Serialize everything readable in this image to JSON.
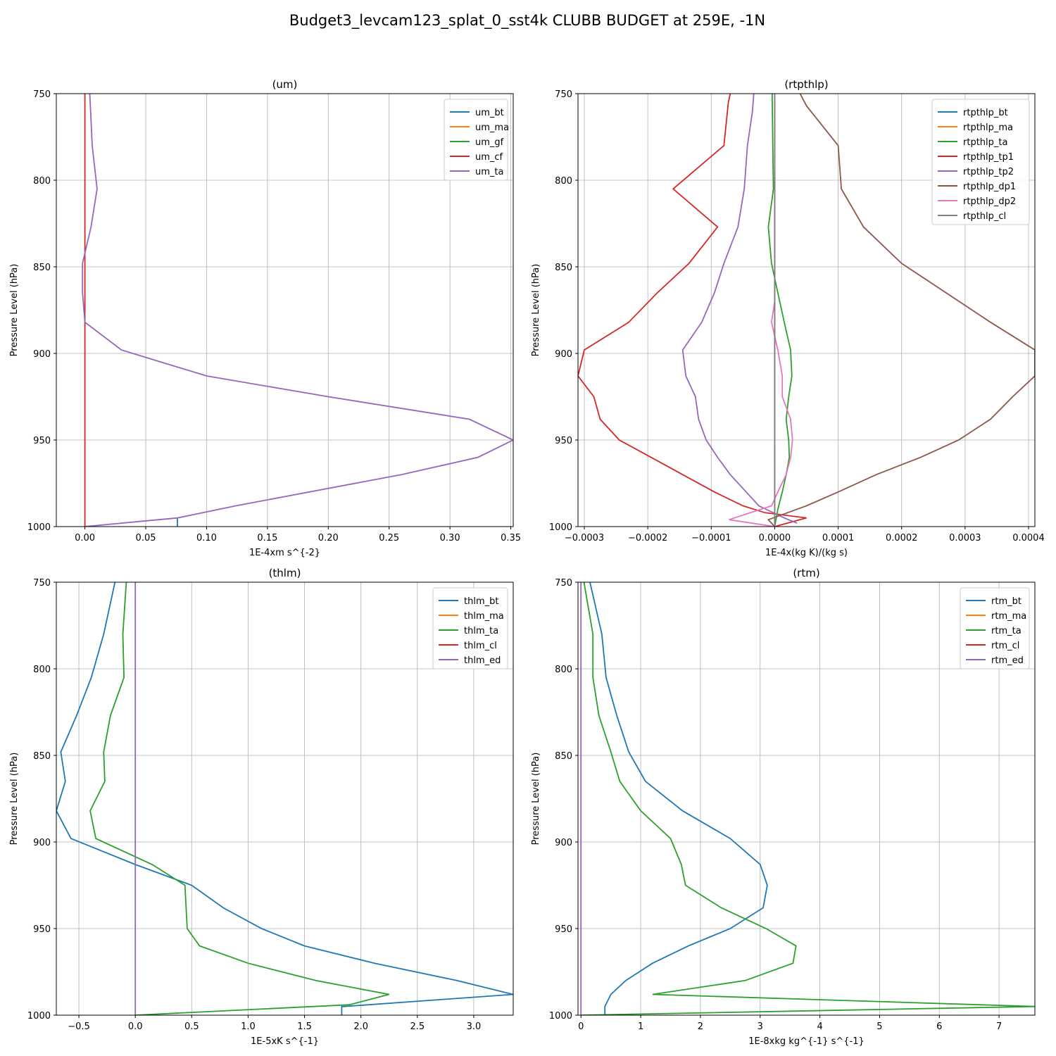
{
  "figure": {
    "suptitle": "Budget3_levcam123_splat_0_sst4k CLUBB BUDGET at 259E, -1N"
  },
  "chart_data": [
    {
      "type": "line",
      "title": "(um)",
      "xlabel": "1E-4xm s^{-2}",
      "ylabel": "Pressure Level (hPa)",
      "xlim": [
        -0.0235,
        0.352
      ],
      "ylim": [
        1000,
        750
      ],
      "y_inverted": true,
      "xticks": [
        0.0,
        0.05,
        0.1,
        0.15,
        0.2,
        0.25,
        0.3,
        0.35
      ],
      "xtick_labels": [
        "0.00",
        "0.05",
        "0.10",
        "0.15",
        "0.20",
        "0.25",
        "0.30",
        "0.35"
      ],
      "yticks": [
        750,
        800,
        850,
        900,
        950,
        1000
      ],
      "ytick_labels": [
        "750",
        "800",
        "850",
        "900",
        "950",
        "1000"
      ],
      "grid": true,
      "legend_position": "upper right",
      "series": [
        {
          "name": "um_bt",
          "color": "#1f77b4",
          "points": [
            [
              0.076,
              1000
            ],
            [
              0.076,
              995
            ]
          ]
        },
        {
          "name": "um_ma",
          "color": "#ff7f0e",
          "points": []
        },
        {
          "name": "um_gf",
          "color": "#2ca02c",
          "points": []
        },
        {
          "name": "um_cf",
          "color": "#d62728",
          "points": [
            [
              0.0,
              750
            ],
            [
              0.0,
              1000
            ]
          ]
        },
        {
          "name": "um_ta",
          "color": "#9467bd",
          "points": [
            [
              0.004,
              750
            ],
            [
              0.006,
              780
            ],
            [
              0.01,
              805
            ],
            [
              0.005,
              827
            ],
            [
              -0.002,
              848
            ],
            [
              -0.002,
              865
            ],
            [
              0.0,
              882
            ],
            [
              0.03,
              898
            ],
            [
              0.1,
              913
            ],
            [
              0.2,
              925
            ],
            [
              0.316,
              938
            ],
            [
              0.352,
              950
            ],
            [
              0.323,
              960
            ],
            [
              0.26,
              970
            ],
            [
              0.124,
              988
            ],
            [
              0.076,
              995
            ],
            [
              0.0,
              1000
            ]
          ]
        }
      ]
    },
    {
      "type": "line",
      "title": "(rtpthlp)",
      "xlabel": "1E-4x(kg K)/(kg s)",
      "ylabel": "Pressure Level (hPa)",
      "xlim": [
        -0.00031,
        0.00041
      ],
      "ylim": [
        1000,
        750
      ],
      "y_inverted": true,
      "xticks": [
        -0.0003,
        -0.0002,
        -0.0001,
        0.0,
        0.0001,
        0.0002,
        0.0003,
        0.0004
      ],
      "xtick_labels": [
        "−0.0003",
        "−0.0002",
        "−0.0001",
        "0.0000",
        "0.0001",
        "0.0002",
        "0.0003",
        "0.0004"
      ],
      "yticks": [
        750,
        800,
        850,
        900,
        950,
        1000
      ],
      "ytick_labels": [
        "750",
        "800",
        "850",
        "900",
        "950",
        "1000"
      ],
      "grid": true,
      "legend_position": "upper right",
      "series": [
        {
          "name": "rtpthlp_bt",
          "color": "#1f77b4",
          "points": []
        },
        {
          "name": "rtpthlp_ma",
          "color": "#ff7f0e",
          "points": [
            [
              0.0,
              750
            ],
            [
              0.0,
              1000
            ]
          ]
        },
        {
          "name": "rtpthlp_ta",
          "color": "#2ca02c",
          "points": [
            [
              -4e-06,
              750
            ],
            [
              -3e-06,
              780
            ],
            [
              -2e-06,
              805
            ],
            [
              -1e-05,
              827
            ],
            [
              -5e-06,
              848
            ],
            [
              5e-06,
              865
            ],
            [
              1.5e-05,
              882
            ],
            [
              2.5e-05,
              898
            ],
            [
              2.7e-05,
              913
            ],
            [
              2.2e-05,
              925
            ],
            [
              1.8e-05,
              938
            ],
            [
              2.2e-05,
              950
            ],
            [
              2.3e-05,
              960
            ],
            [
              1.8e-05,
              970
            ],
            [
              1.2e-05,
              980
            ],
            [
              5e-06,
              990
            ],
            [
              0.0,
              1000
            ]
          ]
        },
        {
          "name": "rtpthlp_tp1",
          "color": "#d62728",
          "points": [
            [
              -7e-05,
              750
            ],
            [
              -7.3e-05,
              755
            ],
            [
              -8e-05,
              780
            ],
            [
              -0.00016,
              805
            ],
            [
              -9e-05,
              827
            ],
            [
              -0.000135,
              848
            ],
            [
              -0.000185,
              865
            ],
            [
              -0.00023,
              882
            ],
            [
              -0.0003,
              898
            ],
            [
              -0.00031,
              913
            ],
            [
              -0.000285,
              925
            ],
            [
              -0.000275,
              938
            ],
            [
              -0.000245,
              950
            ],
            [
              -0.000195,
              960
            ],
            [
              -0.000145,
              970
            ],
            [
              -9.5e-05,
              980
            ],
            [
              -5e-05,
              988
            ],
            [
              -1.5e-05,
              992
            ],
            [
              5e-05,
              995
            ],
            [
              0.0,
              1000
            ]
          ]
        },
        {
          "name": "rtpthlp_tp2",
          "color": "#9467bd",
          "points": [
            [
              -3.3e-05,
              750
            ],
            [
              -3.5e-05,
              760
            ],
            [
              -4.3e-05,
              780
            ],
            [
              -4.8e-05,
              805
            ],
            [
              -5.8e-05,
              827
            ],
            [
              -8e-05,
              848
            ],
            [
              -9.5e-05,
              865
            ],
            [
              -0.000115,
              882
            ],
            [
              -0.000145,
              898
            ],
            [
              -0.00014,
              913
            ],
            [
              -0.000125,
              925
            ],
            [
              -0.00012,
              938
            ],
            [
              -0.000108,
              950
            ],
            [
              -9e-05,
              960
            ],
            [
              -7e-05,
              970
            ],
            [
              -4.5e-05,
              980
            ],
            [
              -2.5e-05,
              988
            ],
            [
              1.5e-05,
              995
            ],
            [
              3.5e-05,
              998
            ]
          ]
        },
        {
          "name": "rtpthlp_dp1",
          "color": "#8c564b",
          "points": [
            [
              4e-05,
              750
            ],
            [
              5e-05,
              757
            ],
            [
              0.0001,
              780
            ],
            [
              0.000105,
              805
            ],
            [
              0.00014,
              827
            ],
            [
              0.0002,
              848
            ],
            [
              0.00027,
              865
            ],
            [
              0.00034,
              882
            ],
            [
              0.00041,
              898
            ],
            [
              0.00041,
              913
            ],
            [
              0.000375,
              925
            ],
            [
              0.00034,
              938
            ],
            [
              0.00029,
              950
            ],
            [
              0.00023,
              960
            ],
            [
              0.00016,
              970
            ],
            [
              0.0001,
              980
            ],
            [
              5e-05,
              988
            ],
            [
              -1e-05,
              996
            ],
            [
              0.0,
              1000
            ]
          ]
        },
        {
          "name": "rtpthlp_dp2",
          "color": "#e377c2",
          "points": [
            [
              0.0,
              750
            ],
            [
              0.0,
              850
            ],
            [
              0.0,
              870
            ],
            [
              -5e-06,
              882
            ],
            [
              5e-06,
              898
            ],
            [
              1.2e-05,
              913
            ],
            [
              1.2e-05,
              925
            ],
            [
              2.5e-05,
              938
            ],
            [
              2.8e-05,
              950
            ],
            [
              2.5e-05,
              960
            ],
            [
              1.8e-05,
              970
            ],
            [
              5e-06,
              980
            ],
            [
              -5e-06,
              988
            ],
            [
              -7.2e-05,
              996
            ],
            [
              0.0,
              1000
            ]
          ]
        },
        {
          "name": "rtpthlp_cl",
          "color": "#7f7f7f",
          "points": [
            [
              0.0,
              750
            ],
            [
              0.0,
              1000
            ]
          ]
        }
      ]
    },
    {
      "type": "line",
      "title": "(thlm)",
      "xlabel": "1E-5xK s^{-1}",
      "ylabel": "Pressure Level (hPa)",
      "xlim": [
        -0.7,
        3.35
      ],
      "ylim": [
        1000,
        750
      ],
      "y_inverted": true,
      "xticks": [
        -0.5,
        0.0,
        0.5,
        1.0,
        1.5,
        2.0,
        2.5,
        3.0
      ],
      "xtick_labels": [
        "−0.5",
        "0.0",
        "0.5",
        "1.0",
        "1.5",
        "2.0",
        "2.5",
        "3.0"
      ],
      "yticks": [
        750,
        800,
        850,
        900,
        950,
        1000
      ],
      "ytick_labels": [
        "750",
        "800",
        "850",
        "900",
        "950",
        "1000"
      ],
      "grid": true,
      "legend_position": "upper right",
      "series": [
        {
          "name": "thlm_bt",
          "color": "#1f77b4",
          "points": [
            [
              -0.18,
              750
            ],
            [
              -0.28,
              780
            ],
            [
              -0.39,
              805
            ],
            [
              -0.52,
              827
            ],
            [
              -0.66,
              848
            ],
            [
              -0.62,
              865
            ],
            [
              -0.7,
              882
            ],
            [
              -0.57,
              898
            ],
            [
              0.0,
              913
            ],
            [
              0.5,
              925
            ],
            [
              0.78,
              938
            ],
            [
              1.12,
              950
            ],
            [
              1.5,
              960
            ],
            [
              2.12,
              970
            ],
            [
              2.85,
              980
            ],
            [
              3.35,
              988
            ],
            [
              1.85,
              995
            ],
            [
              1.83,
              995
            ],
            [
              1.83,
              1000
            ]
          ]
        },
        {
          "name": "thlm_ma",
          "color": "#ff7f0e",
          "points": []
        },
        {
          "name": "thlm_ta",
          "color": "#2ca02c",
          "points": [
            [
              -0.08,
              750
            ],
            [
              -0.11,
              780
            ],
            [
              -0.1,
              805
            ],
            [
              -0.22,
              827
            ],
            [
              -0.28,
              848
            ],
            [
              -0.27,
              865
            ],
            [
              -0.4,
              882
            ],
            [
              -0.35,
              898
            ],
            [
              0.15,
              913
            ],
            [
              0.44,
              925
            ],
            [
              0.46,
              950
            ],
            [
              0.57,
              960
            ],
            [
              1.0,
              970
            ],
            [
              1.6,
              980
            ],
            [
              2.25,
              988
            ],
            [
              1.9,
              994
            ],
            [
              0.0,
              1000
            ]
          ]
        },
        {
          "name": "thlm_cl",
          "color": "#d62728",
          "points": []
        },
        {
          "name": "thlm_ed",
          "color": "#9467bd",
          "points": [
            [
              0.0,
              750
            ],
            [
              0.0,
              1000
            ]
          ]
        }
      ]
    },
    {
      "type": "line",
      "title": "(rtm)",
      "xlabel": "1E-8xkg kg^{-1} s^{-1}",
      "ylabel": "Pressure Level (hPa)",
      "xlim": [
        -0.05,
        7.6
      ],
      "ylim": [
        1000,
        750
      ],
      "y_inverted": true,
      "xticks": [
        0,
        1,
        2,
        3,
        4,
        5,
        6,
        7
      ],
      "xtick_labels": [
        "0",
        "1",
        "2",
        "3",
        "4",
        "5",
        "6",
        "7"
      ],
      "yticks": [
        750,
        800,
        850,
        900,
        950,
        1000
      ],
      "ytick_labels": [
        "750",
        "800",
        "850",
        "900",
        "950",
        "1000"
      ],
      "grid": true,
      "legend_position": "upper right",
      "series": [
        {
          "name": "rtm_bt",
          "color": "#1f77b4",
          "points": [
            [
              0.15,
              750
            ],
            [
              0.35,
              780
            ],
            [
              0.42,
              805
            ],
            [
              0.6,
              827
            ],
            [
              0.8,
              848
            ],
            [
              1.08,
              865
            ],
            [
              1.7,
              882
            ],
            [
              2.5,
              898
            ],
            [
              3.0,
              913
            ],
            [
              3.12,
              925
            ],
            [
              3.05,
              938
            ],
            [
              2.5,
              950
            ],
            [
              1.8,
              960
            ],
            [
              1.2,
              970
            ],
            [
              0.75,
              980
            ],
            [
              0.5,
              988
            ],
            [
              0.4,
              995
            ],
            [
              0.4,
              1000
            ]
          ]
        },
        {
          "name": "rtm_ma",
          "color": "#ff7f0e",
          "points": []
        },
        {
          "name": "rtm_ta",
          "color": "#2ca02c",
          "points": [
            [
              0.05,
              750
            ],
            [
              0.2,
              780
            ],
            [
              0.2,
              805
            ],
            [
              0.3,
              827
            ],
            [
              0.5,
              848
            ],
            [
              0.65,
              865
            ],
            [
              1.0,
              882
            ],
            [
              1.5,
              898
            ],
            [
              1.68,
              913
            ],
            [
              1.75,
              925
            ],
            [
              2.35,
              938
            ],
            [
              3.1,
              950
            ],
            [
              3.6,
              960
            ],
            [
              3.55,
              970
            ],
            [
              2.75,
              980
            ],
            [
              1.2,
              988
            ],
            [
              7.6,
              995
            ],
            [
              0.0,
              1000
            ]
          ]
        },
        {
          "name": "rtm_cl",
          "color": "#d62728",
          "points": []
        },
        {
          "name": "rtm_ed",
          "color": "#9467bd",
          "points": [
            [
              0.0,
              750
            ],
            [
              0.0,
              1000
            ]
          ]
        }
      ]
    }
  ]
}
